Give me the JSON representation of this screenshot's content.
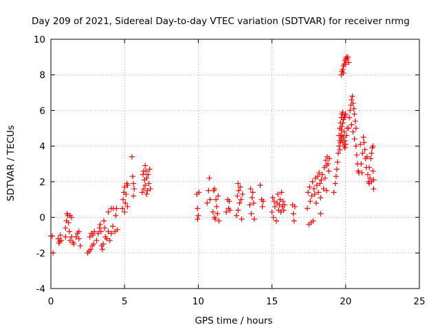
{
  "chart_data": {
    "type": "scatter",
    "title": "Day 209 of 2021, Sidereal Day-to-day VTEC variation (SDTVAR) for receiver nrmg",
    "xlabel": "GPS time / hours",
    "ylabel": "SDTVAR / TECUs",
    "xlim": [
      0,
      25
    ],
    "ylim": [
      -4,
      10
    ],
    "x_ticks": [
      0,
      5,
      10,
      15,
      20,
      25
    ],
    "y_ticks": [
      -4,
      -2,
      0,
      2,
      4,
      6,
      8,
      10
    ],
    "grid": true,
    "marker": "plus",
    "colors": {
      "series": "#ff0000",
      "grid": "#a0a0a0",
      "axis": "#000000"
    },
    "series": [
      {
        "name": "SDTVAR",
        "points": [
          [
            0.0,
            -1.05
          ],
          [
            0.1,
            -1.05
          ],
          [
            0.15,
            -2.0
          ],
          [
            0.5,
            -1.2
          ],
          [
            0.55,
            -1.45
          ],
          [
            0.6,
            -1.35
          ],
          [
            0.65,
            -1.0
          ],
          [
            0.7,
            -1.3
          ],
          [
            1.0,
            -1.1
          ],
          [
            1.0,
            -0.6
          ],
          [
            1.05,
            -0.2
          ],
          [
            1.1,
            0.2
          ],
          [
            1.15,
            0.1
          ],
          [
            1.2,
            -0.3
          ],
          [
            1.25,
            -0.8
          ],
          [
            1.3,
            -1.3
          ],
          [
            1.4,
            -1.1
          ],
          [
            1.5,
            -1.4
          ],
          [
            1.55,
            -1.5
          ],
          [
            1.4,
            0.0
          ],
          [
            1.3,
            0.1
          ],
          [
            1.8,
            -0.9
          ],
          [
            1.9,
            -1.2
          ],
          [
            1.9,
            -0.8
          ],
          [
            2.0,
            -1.6
          ],
          [
            1.7,
            -1.1
          ],
          [
            2.5,
            -2.0
          ],
          [
            2.6,
            -1.9
          ],
          [
            2.65,
            -1.1
          ],
          [
            2.7,
            -1.8
          ],
          [
            2.75,
            -0.9
          ],
          [
            2.8,
            -1.6
          ],
          [
            2.85,
            -1.0
          ],
          [
            2.9,
            -1.5
          ],
          [
            2.95,
            -0.8
          ],
          [
            3.1,
            -1.3
          ],
          [
            3.2,
            -0.9
          ],
          [
            3.3,
            -0.6
          ],
          [
            3.35,
            -0.4
          ],
          [
            3.4,
            -0.8
          ],
          [
            3.45,
            -1.6
          ],
          [
            3.5,
            -1.8
          ],
          [
            3.55,
            -1.5
          ],
          [
            3.6,
            -0.2
          ],
          [
            3.65,
            -0.6
          ],
          [
            3.7,
            -1.1
          ],
          [
            3.8,
            -1.2
          ],
          [
            3.9,
            -0.8
          ],
          [
            3.9,
            0.3
          ],
          [
            4.0,
            -1.3
          ],
          [
            4.1,
            -0.9
          ],
          [
            4.2,
            -0.5
          ],
          [
            4.25,
            0.5
          ],
          [
            4.35,
            -0.8
          ],
          [
            4.4,
            0.1
          ],
          [
            4.45,
            0.5
          ],
          [
            4.5,
            -0.7
          ],
          [
            4.1,
            0.5
          ],
          [
            4.85,
            0.5
          ],
          [
            4.9,
            1.0
          ],
          [
            4.95,
            1.4
          ],
          [
            5.0,
            0.3
          ],
          [
            5.05,
            0.8
          ],
          [
            5.1,
            1.3
          ],
          [
            5.15,
            1.9
          ],
          [
            5.2,
            0.6
          ],
          [
            5.2,
            1.8
          ],
          [
            5.0,
            1.7
          ],
          [
            5.5,
            3.4
          ],
          [
            5.55,
            2.3
          ],
          [
            5.6,
            1.9
          ],
          [
            5.65,
            1.6
          ],
          [
            5.6,
            1.2
          ],
          [
            6.2,
            1.4
          ],
          [
            6.25,
            2.4
          ],
          [
            6.3,
            1.6
          ],
          [
            6.35,
            2.1
          ],
          [
            6.4,
            1.8
          ],
          [
            6.45,
            2.6
          ],
          [
            6.5,
            2.2
          ],
          [
            6.55,
            1.5
          ],
          [
            6.6,
            2.4
          ],
          [
            6.65,
            1.9
          ],
          [
            6.7,
            2.7
          ],
          [
            6.75,
            1.6
          ],
          [
            6.3,
            2.6
          ],
          [
            6.5,
            1.3
          ],
          [
            6.4,
            2.9
          ],
          [
            9.9,
            1.3
          ],
          [
            9.95,
            0.5
          ],
          [
            10.0,
            0.1
          ],
          [
            10.05,
            1.4
          ],
          [
            9.95,
            -0.1
          ],
          [
            10.6,
            0.8
          ],
          [
            10.7,
            1.5
          ],
          [
            10.75,
            2.2
          ],
          [
            10.8,
            1.0
          ],
          [
            11.0,
            0.3
          ],
          [
            11.05,
            1.5
          ],
          [
            11.1,
            0.0
          ],
          [
            11.15,
            -0.1
          ],
          [
            11.2,
            1.0
          ],
          [
            11.25,
            0.6
          ],
          [
            11.3,
            0.2
          ],
          [
            11.35,
            1.2
          ],
          [
            11.4,
            -0.2
          ],
          [
            11.1,
            1.6
          ],
          [
            11.9,
            0.3
          ],
          [
            12.0,
            1.0
          ],
          [
            12.05,
            0.5
          ],
          [
            12.1,
            0.9
          ],
          [
            12.15,
            0.4
          ],
          [
            12.6,
            0.1
          ],
          [
            12.65,
            1.2
          ],
          [
            12.7,
            0.4
          ],
          [
            12.75,
            1.5
          ],
          [
            12.8,
            0.8
          ],
          [
            12.85,
            1.7
          ],
          [
            12.9,
            1.0
          ],
          [
            12.95,
            -0.1
          ],
          [
            13.0,
            1.3
          ],
          [
            12.7,
            1.9
          ],
          [
            13.5,
            0.7
          ],
          [
            13.55,
            1.6
          ],
          [
            13.6,
            0.2
          ],
          [
            13.65,
            1.1
          ],
          [
            13.7,
            1.4
          ],
          [
            13.75,
            0.8
          ],
          [
            13.8,
            -0.1
          ],
          [
            14.2,
            1.8
          ],
          [
            14.3,
            1.0
          ],
          [
            14.35,
            0.6
          ],
          [
            14.4,
            0.9
          ],
          [
            15.0,
            0.3
          ],
          [
            15.05,
            1.1
          ],
          [
            15.1,
            0.0
          ],
          [
            15.15,
            0.9
          ],
          [
            15.2,
            0.6
          ],
          [
            15.3,
            -0.2
          ],
          [
            15.35,
            0.8
          ],
          [
            15.4,
            1.3
          ],
          [
            15.45,
            0.4
          ],
          [
            15.5,
            0.7
          ],
          [
            15.55,
            1.0
          ],
          [
            15.6,
            0.3
          ],
          [
            15.65,
            1.4
          ],
          [
            15.7,
            0.6
          ],
          [
            15.75,
            0.9
          ],
          [
            15.8,
            0.4
          ],
          [
            15.85,
            0.7
          ],
          [
            16.4,
            0.7
          ],
          [
            16.45,
            0.2
          ],
          [
            16.5,
            -0.2
          ],
          [
            16.55,
            0.6
          ],
          [
            17.4,
            0.5
          ],
          [
            17.45,
            1.4
          ],
          [
            17.5,
            -0.4
          ],
          [
            17.55,
            1.7
          ],
          [
            17.6,
            0.9
          ],
          [
            17.65,
            -0.3
          ],
          [
            17.7,
            1.2
          ],
          [
            17.75,
            2.0
          ],
          [
            17.8,
            -0.2
          ],
          [
            17.85,
            1.6
          ],
          [
            17.9,
            1.3
          ],
          [
            17.95,
            2.2
          ],
          [
            18.0,
            0.8
          ],
          [
            18.05,
            1.8
          ],
          [
            18.1,
            2.3
          ],
          [
            18.15,
            1.4
          ],
          [
            18.2,
            2.5
          ],
          [
            18.25,
            1.9
          ],
          [
            18.3,
            1.1
          ],
          [
            18.35,
            2.1
          ],
          [
            18.4,
            2.4
          ],
          [
            18.5,
            1.6
          ],
          [
            18.55,
            2.8
          ],
          [
            18.6,
            2.2
          ],
          [
            18.65,
            3.2
          ],
          [
            18.7,
            2.9
          ],
          [
            18.75,
            3.4
          ],
          [
            18.8,
            3.0
          ],
          [
            18.85,
            2.6
          ],
          [
            18.9,
            3.3
          ],
          [
            18.7,
            1.5
          ],
          [
            18.3,
            0.2
          ],
          [
            19.2,
            1.4
          ],
          [
            19.3,
            1.9
          ],
          [
            19.35,
            2.3
          ],
          [
            19.4,
            2.7
          ],
          [
            19.45,
            3.1
          ],
          [
            19.5,
            3.6
          ],
          [
            19.55,
            4.0
          ],
          [
            19.6,
            4.3
          ],
          [
            19.65,
            4.6
          ],
          [
            19.7,
            4.9
          ],
          [
            19.75,
            5.1
          ],
          [
            19.8,
            5.3
          ],
          [
            19.85,
            5.5
          ],
          [
            19.9,
            5.6
          ],
          [
            19.95,
            5.7
          ],
          [
            20.0,
            5.8
          ],
          [
            19.6,
            3.8
          ],
          [
            19.65,
            4.2
          ],
          [
            19.7,
            4.4
          ],
          [
            19.75,
            4.6
          ],
          [
            19.8,
            4.2
          ],
          [
            19.85,
            4.5
          ],
          [
            19.9,
            4.8
          ],
          [
            19.95,
            4.3
          ],
          [
            20.0,
            4.1
          ],
          [
            20.05,
            4.6
          ],
          [
            20.1,
            5.0
          ],
          [
            19.55,
            4.6
          ],
          [
            19.6,
            5.0
          ],
          [
            19.65,
            5.3
          ],
          [
            19.7,
            5.6
          ],
          [
            19.75,
            5.8
          ],
          [
            19.8,
            5.9
          ],
          [
            19.9,
            4.0
          ],
          [
            19.95,
            3.9
          ],
          [
            19.7,
            8.0
          ],
          [
            19.75,
            8.2
          ],
          [
            19.8,
            8.3
          ],
          [
            19.85,
            8.5
          ],
          [
            19.9,
            8.6
          ],
          [
            19.95,
            8.8
          ],
          [
            20.0,
            8.9
          ],
          [
            20.05,
            9.0
          ],
          [
            20.1,
            8.9
          ],
          [
            20.15,
            9.0
          ],
          [
            20.2,
            8.7
          ],
          [
            19.85,
            8.1
          ],
          [
            20.0,
            8.6
          ],
          [
            20.2,
            5.0
          ],
          [
            20.25,
            5.6
          ],
          [
            20.3,
            6.0
          ],
          [
            20.35,
            6.3
          ],
          [
            20.4,
            6.6
          ],
          [
            20.45,
            6.8
          ],
          [
            20.5,
            6.4
          ],
          [
            20.55,
            6.1
          ],
          [
            20.6,
            5.8
          ],
          [
            20.65,
            5.4
          ],
          [
            20.7,
            5.0
          ],
          [
            20.4,
            5.2
          ],
          [
            20.5,
            4.8
          ],
          [
            20.6,
            4.4
          ],
          [
            20.7,
            4.0
          ],
          [
            20.75,
            3.5
          ],
          [
            20.8,
            3.0
          ],
          [
            20.85,
            2.6
          ],
          [
            20.9,
            2.5
          ],
          [
            21.0,
            4.1
          ],
          [
            21.05,
            3.0
          ],
          [
            21.1,
            2.5
          ],
          [
            21.15,
            3.6
          ],
          [
            21.2,
            4.5
          ],
          [
            21.25,
            4.2
          ],
          [
            21.3,
            3.8
          ],
          [
            21.35,
            3.3
          ],
          [
            21.4,
            2.8
          ],
          [
            21.45,
            3.4
          ],
          [
            21.5,
            2.4
          ],
          [
            21.55,
            2.0
          ],
          [
            21.6,
            2.8
          ],
          [
            21.65,
            2.2
          ],
          [
            21.7,
            3.3
          ],
          [
            21.75,
            3.6
          ],
          [
            21.8,
            3.9
          ],
          [
            21.85,
            4.0
          ],
          [
            21.9,
            1.6
          ],
          [
            21.9,
            2.1
          ],
          [
            21.85,
            2.6
          ],
          [
            21.6,
            1.9
          ],
          [
            21.75,
            2.0
          ]
        ]
      }
    ]
  }
}
